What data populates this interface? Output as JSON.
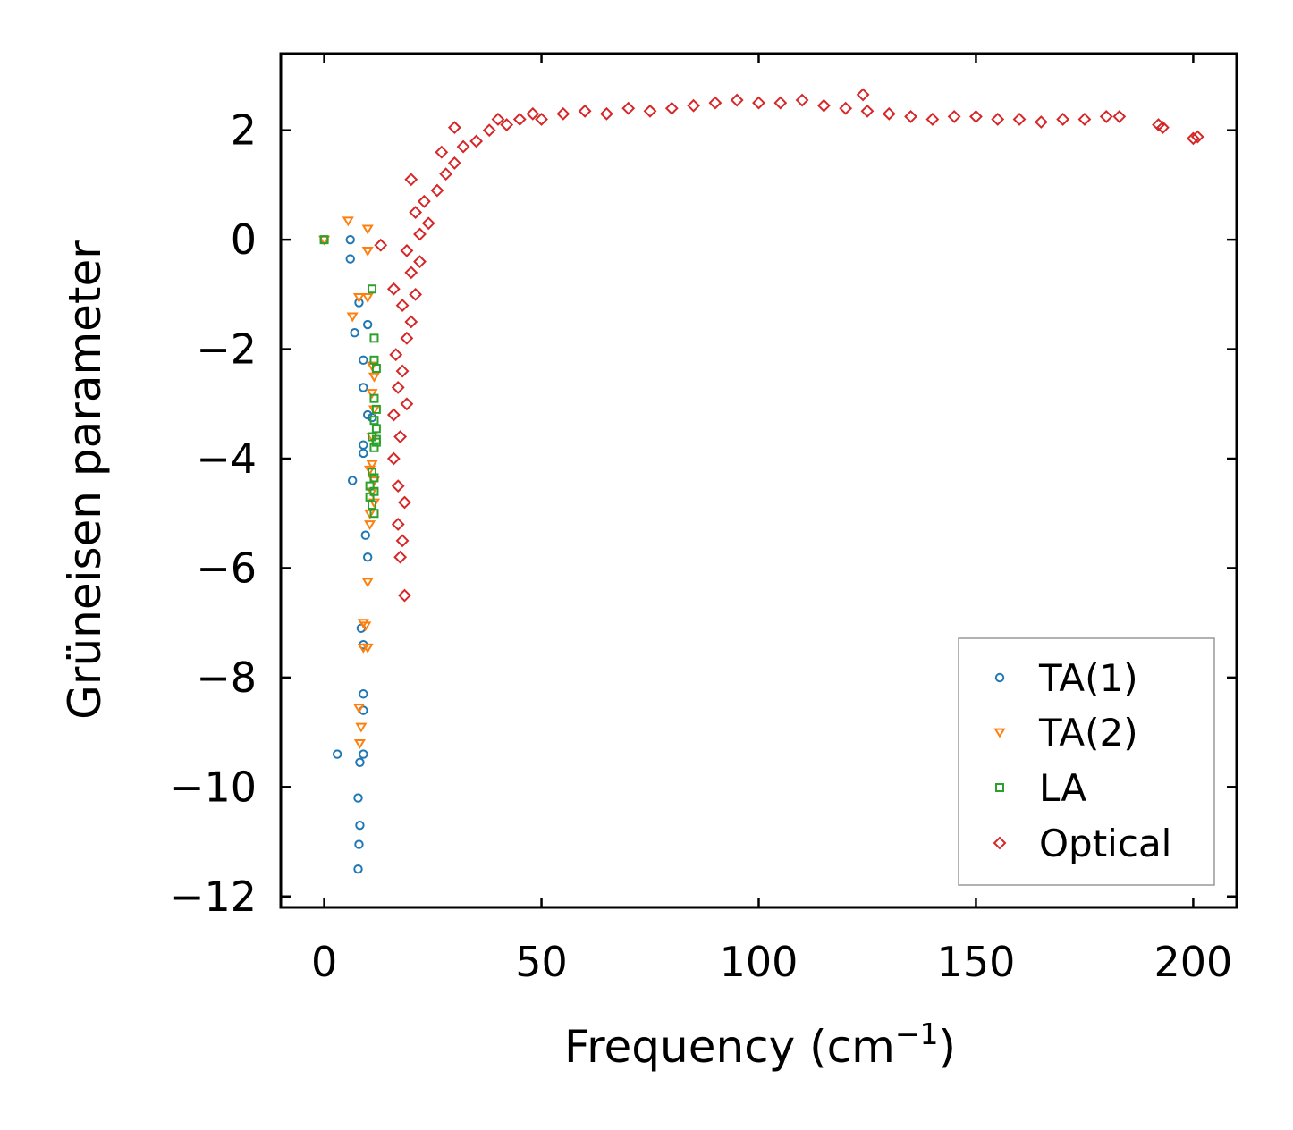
{
  "chart_data": {
    "type": "scatter",
    "title": "",
    "xlabel": "Frequency (cm",
    "xlabel_sup": "−1",
    "xlabel_close": ")",
    "ylabel": "Grüneisen parameter",
    "xlim": [
      -10,
      210
    ],
    "ylim": [
      -12.2,
      3.4
    ],
    "xticks": [
      0,
      50,
      100,
      150,
      200
    ],
    "xtick_labels": [
      "0",
      "50",
      "100",
      "150",
      "200"
    ],
    "yticks": [
      2,
      0,
      -2,
      -4,
      -6,
      -8,
      -10,
      -12
    ],
    "ytick_labels": [
      "2",
      "0",
      "−2",
      "−4",
      "−6",
      "−8",
      "−10",
      "−12"
    ],
    "grid": false,
    "legend": {
      "location": "lower-right",
      "entries": [
        "TA(1)",
        "TA(2)",
        "LA",
        "Optical"
      ]
    },
    "series": [
      {
        "name": "TA(1)",
        "marker": "circle",
        "color": "#1f77b4",
        "points": [
          [
            0,
            0
          ],
          [
            6,
            0
          ],
          [
            6,
            -0.35
          ],
          [
            8,
            -1.15
          ],
          [
            10,
            -1.55
          ],
          [
            7,
            -1.7
          ],
          [
            9,
            -2.2
          ],
          [
            9,
            -2.7
          ],
          [
            10,
            -3.2
          ],
          [
            11,
            -3.25
          ],
          [
            9,
            -3.75
          ],
          [
            9,
            -3.9
          ],
          [
            6.5,
            -4.4
          ],
          [
            9.5,
            -5.4
          ],
          [
            10,
            -5.8
          ],
          [
            8.5,
            -7.1
          ],
          [
            9,
            -7.4
          ],
          [
            9,
            -8.3
          ],
          [
            9,
            -8.6
          ],
          [
            3,
            -9.4
          ],
          [
            9,
            -9.4
          ],
          [
            8.2,
            -9.55
          ],
          [
            7.8,
            -10.2
          ],
          [
            8.2,
            -10.7
          ],
          [
            8,
            -11.05
          ],
          [
            7.8,
            -11.5
          ]
        ]
      },
      {
        "name": "TA(2)",
        "marker": "triangle-down",
        "color": "#ff7f0e",
        "points": [
          [
            0,
            0
          ],
          [
            5.5,
            0.35
          ],
          [
            10,
            0.2
          ],
          [
            10,
            -0.2
          ],
          [
            8,
            -1.05
          ],
          [
            10,
            -1.05
          ],
          [
            6.5,
            -1.4
          ],
          [
            11,
            -2.3
          ],
          [
            11.5,
            -2.5
          ],
          [
            11,
            -2.8
          ],
          [
            11.5,
            -3.1
          ],
          [
            11,
            -3.6
          ],
          [
            11,
            -4.1
          ],
          [
            10.5,
            -4.2
          ],
          [
            11.5,
            -4.4
          ],
          [
            11,
            -4.6
          ],
          [
            11.5,
            -4.8
          ],
          [
            10.5,
            -5.0
          ],
          [
            10.5,
            -5.2
          ],
          [
            10,
            -6.25
          ],
          [
            9,
            -7.0
          ],
          [
            9.5,
            -7.05
          ],
          [
            9,
            -7.45
          ],
          [
            10,
            -7.45
          ],
          [
            8,
            -8.55
          ],
          [
            8.5,
            -8.9
          ],
          [
            8.2,
            -9.2
          ]
        ]
      },
      {
        "name": "LA",
        "marker": "square",
        "color": "#2ca02c",
        "points": [
          [
            0,
            0
          ],
          [
            11,
            -0.9
          ],
          [
            11.5,
            -1.8
          ],
          [
            11.5,
            -2.2
          ],
          [
            12,
            -2.35
          ],
          [
            11.5,
            -2.9
          ],
          [
            12,
            -3.1
          ],
          [
            11.5,
            -3.3
          ],
          [
            12,
            -3.45
          ],
          [
            11,
            -3.6
          ],
          [
            12,
            -3.65
          ],
          [
            11.5,
            -3.8
          ],
          [
            12,
            -3.7
          ],
          [
            11,
            -4.25
          ],
          [
            11.5,
            -4.35
          ],
          [
            10.5,
            -4.5
          ],
          [
            11.5,
            -4.6
          ],
          [
            10.5,
            -4.7
          ],
          [
            11,
            -4.85
          ],
          [
            11.5,
            -5.0
          ]
        ]
      },
      {
        "name": "Optical",
        "marker": "diamond",
        "color": "#d62728",
        "trend": "gamma rises steeply from about -6 near 17 cm-1 to about 0 at 22 cm-1, reaches about 2 at 45 cm-1, peaks near 2.5 around 95-115 cm-1, then declines to 2.2 at 185 cm-1 and 1.85 at 200 cm-1",
        "points": [
          [
            17.5,
            -5.8
          ],
          [
            18,
            -5.5
          ],
          [
            17,
            -5.2
          ],
          [
            18.5,
            -4.8
          ],
          [
            17,
            -4.5
          ],
          [
            18.5,
            -6.5
          ],
          [
            16,
            -4.0
          ],
          [
            17.5,
            -3.6
          ],
          [
            16,
            -3.2
          ],
          [
            19,
            -3.0
          ],
          [
            17,
            -2.7
          ],
          [
            18,
            -2.4
          ],
          [
            16.5,
            -2.1
          ],
          [
            19,
            -1.8
          ],
          [
            20,
            -1.5
          ],
          [
            18,
            -1.2
          ],
          [
            21,
            -1.0
          ],
          [
            16,
            -0.9
          ],
          [
            20,
            -0.6
          ],
          [
            22,
            -0.4
          ],
          [
            19,
            -0.2
          ],
          [
            13,
            -0.1
          ],
          [
            22,
            0.1
          ],
          [
            24,
            0.3
          ],
          [
            21,
            0.5
          ],
          [
            23,
            0.7
          ],
          [
            26,
            0.9
          ],
          [
            20,
            1.1
          ],
          [
            28,
            1.2
          ],
          [
            30,
            1.4
          ],
          [
            27,
            1.6
          ],
          [
            32,
            1.7
          ],
          [
            35,
            1.8
          ],
          [
            30,
            2.05
          ],
          [
            38,
            2.0
          ],
          [
            40,
            2.2
          ],
          [
            42,
            2.1
          ],
          [
            45,
            2.2
          ],
          [
            48,
            2.3
          ],
          [
            50,
            2.2
          ],
          [
            55,
            2.3
          ],
          [
            60,
            2.35
          ],
          [
            65,
            2.3
          ],
          [
            70,
            2.4
          ],
          [
            75,
            2.35
          ],
          [
            80,
            2.4
          ],
          [
            85,
            2.45
          ],
          [
            90,
            2.5
          ],
          [
            95,
            2.55
          ],
          [
            100,
            2.5
          ],
          [
            105,
            2.5
          ],
          [
            110,
            2.55
          ],
          [
            115,
            2.45
          ],
          [
            120,
            2.4
          ],
          [
            124,
            2.65
          ],
          [
            125,
            2.35
          ],
          [
            130,
            2.3
          ],
          [
            135,
            2.25
          ],
          [
            140,
            2.2
          ],
          [
            145,
            2.25
          ],
          [
            150,
            2.25
          ],
          [
            155,
            2.2
          ],
          [
            160,
            2.2
          ],
          [
            165,
            2.15
          ],
          [
            170,
            2.2
          ],
          [
            175,
            2.2
          ],
          [
            180,
            2.25
          ],
          [
            183,
            2.25
          ],
          [
            192,
            2.1
          ],
          [
            193,
            2.05
          ],
          [
            200,
            1.85
          ],
          [
            201,
            1.88
          ]
        ]
      }
    ]
  }
}
